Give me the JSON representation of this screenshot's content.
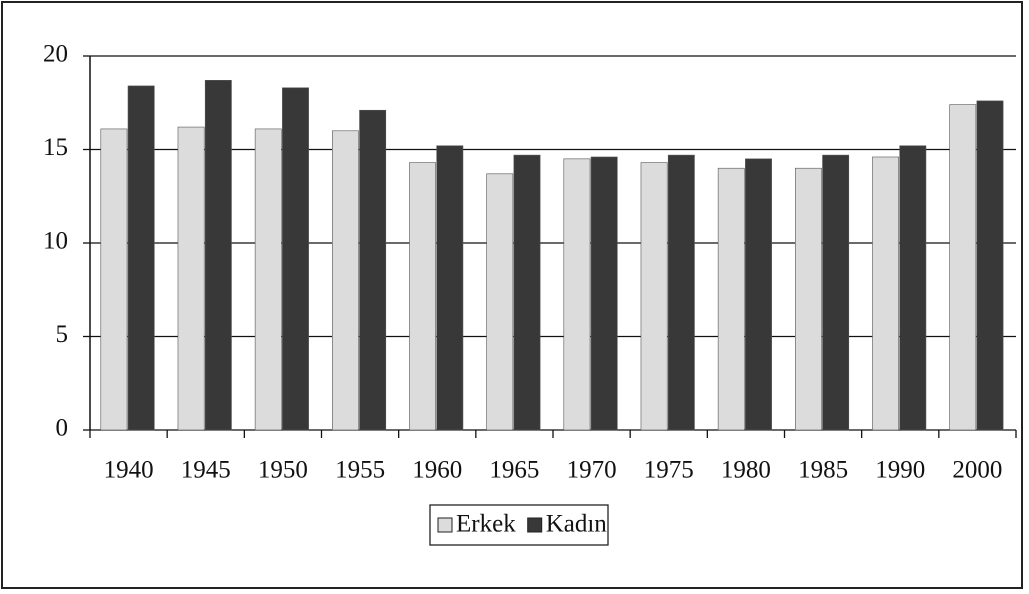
{
  "chart_data": {
    "type": "bar",
    "categories": [
      "1940",
      "1945",
      "1950",
      "1955",
      "1960",
      "1965",
      "1970",
      "1975",
      "1980",
      "1985",
      "1990",
      "2000"
    ],
    "series": [
      {
        "name": "Erkek",
        "color": "#dcdcdc",
        "values": [
          16.1,
          16.2,
          16.1,
          16.0,
          14.3,
          13.7,
          14.5,
          14.3,
          14.0,
          14.0,
          14.6,
          17.4
        ]
      },
      {
        "name": "Kadın",
        "color": "#383838",
        "values": [
          18.4,
          18.7,
          18.3,
          17.1,
          15.2,
          14.7,
          14.6,
          14.7,
          14.5,
          14.7,
          15.2,
          17.6
        ]
      }
    ],
    "ylim": [
      0,
      20
    ],
    "yticks": [
      0,
      5,
      10,
      15,
      20
    ],
    "grid": true,
    "legend": "bottom"
  }
}
